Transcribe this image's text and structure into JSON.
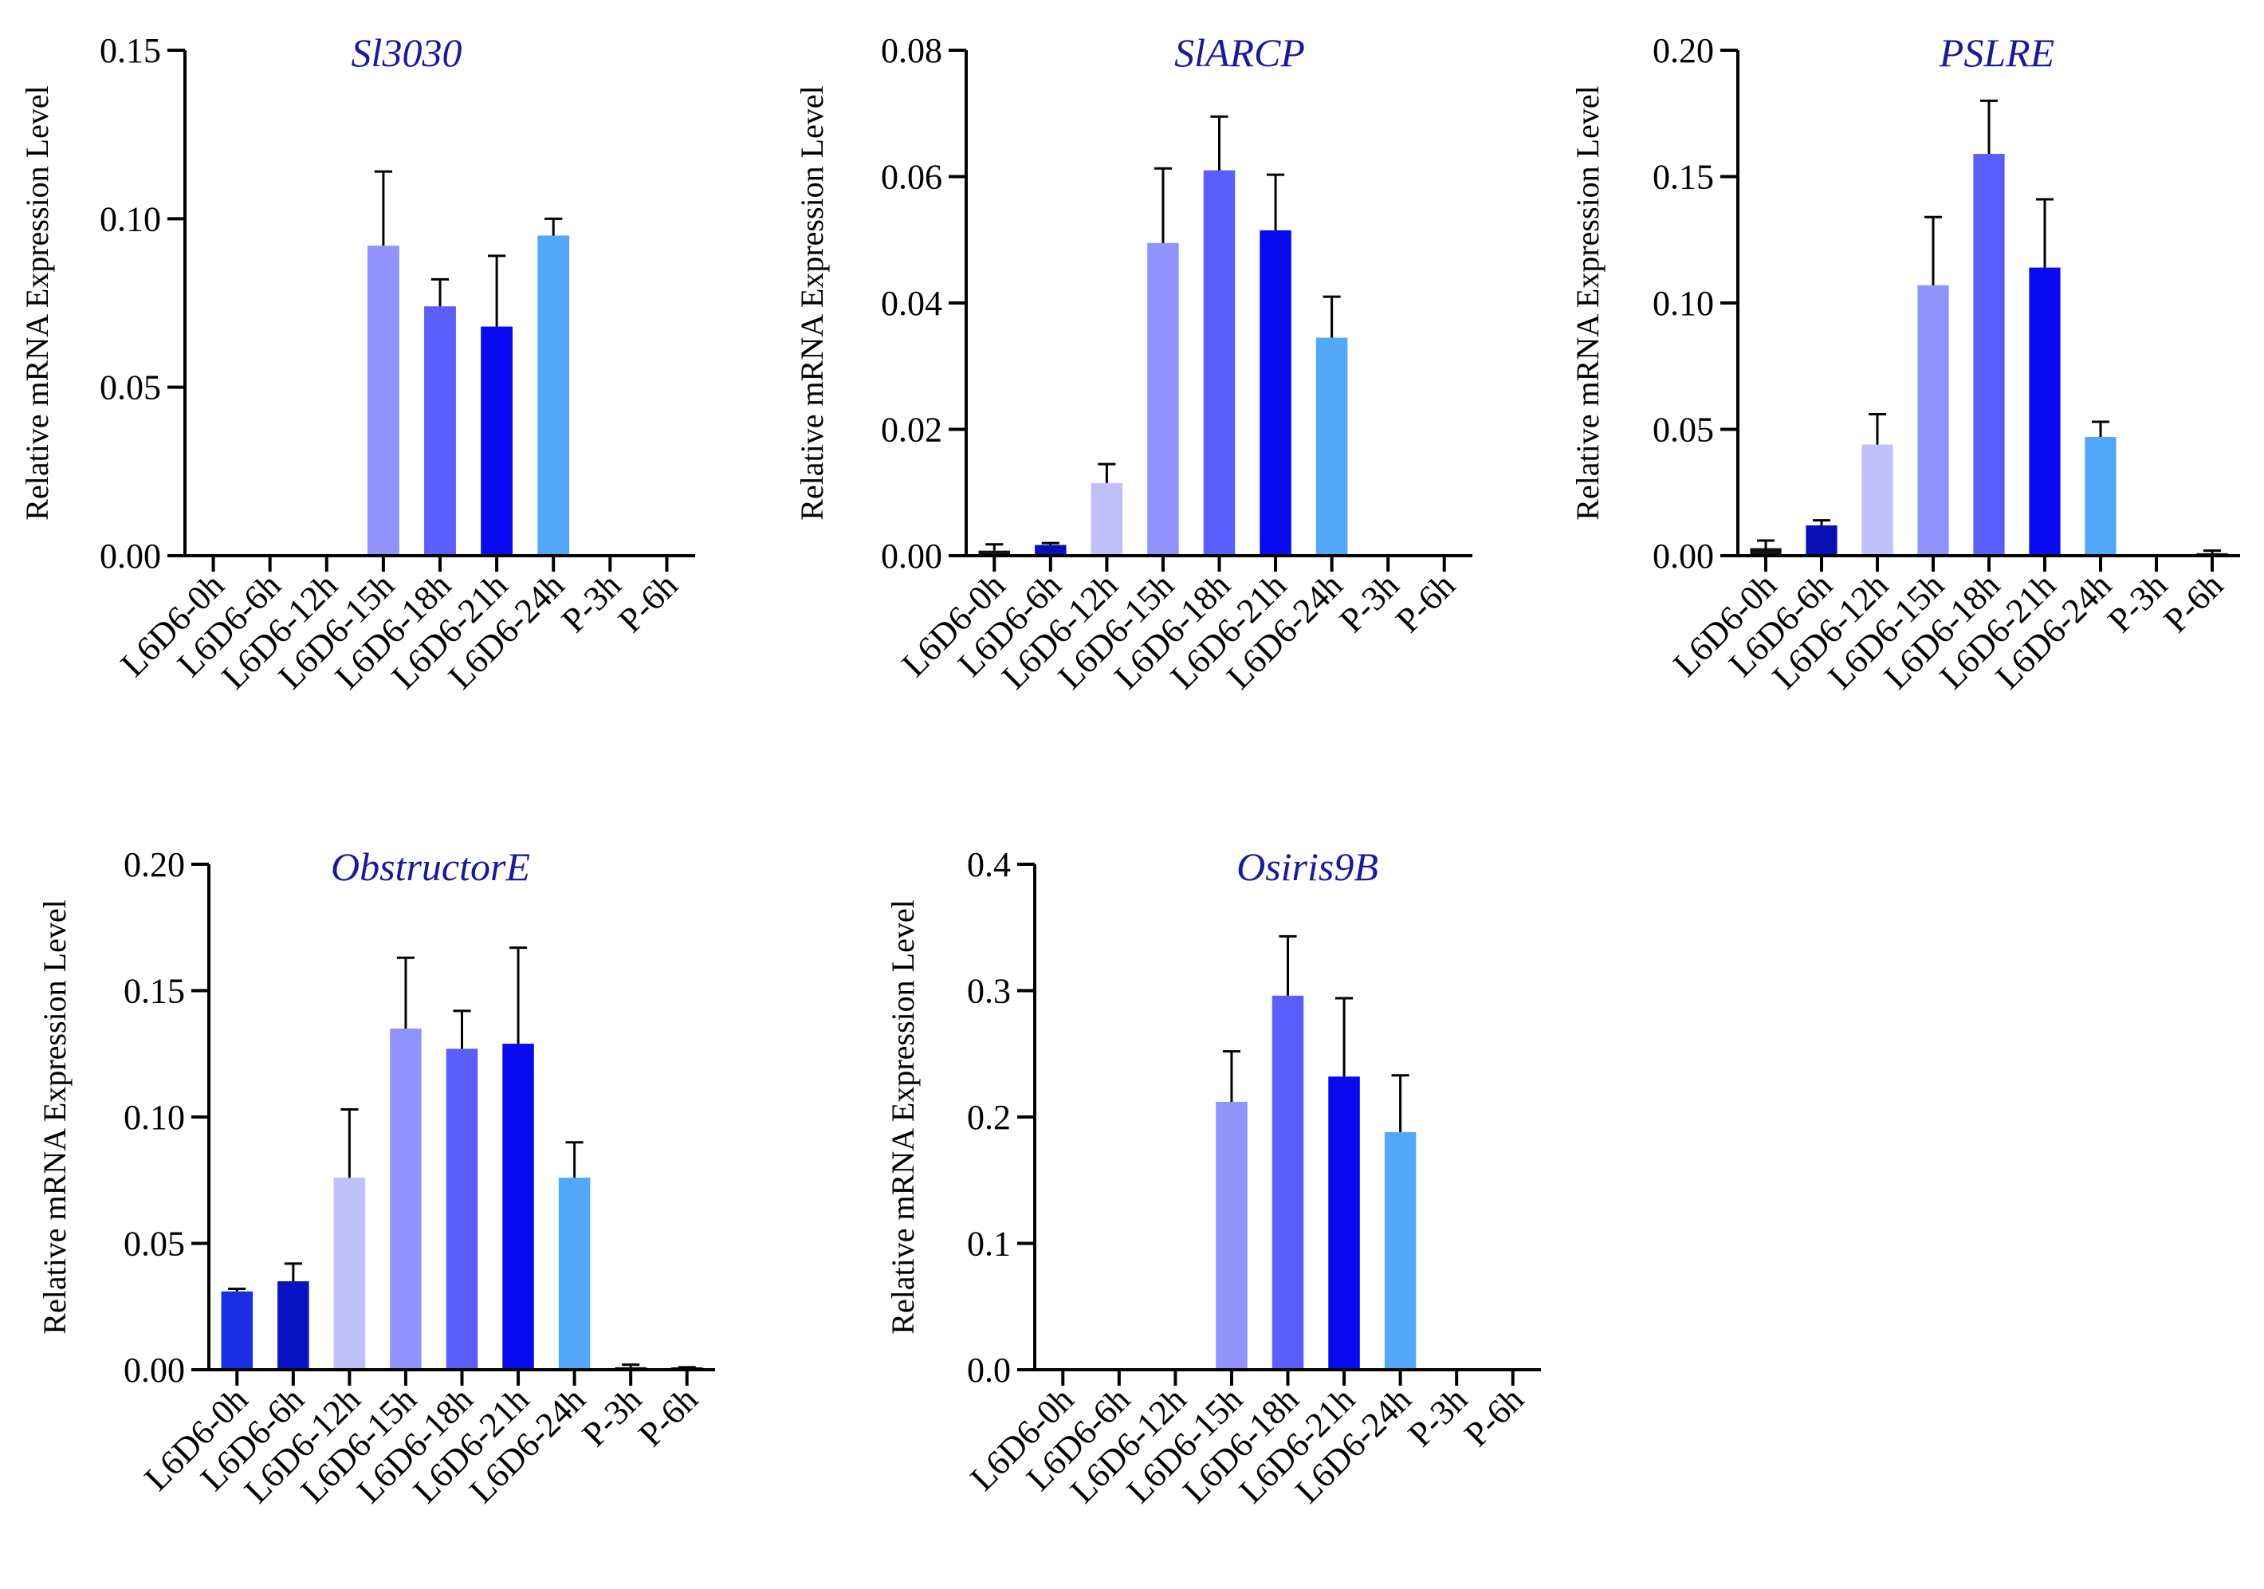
{
  "chart_data": [
    {
      "type": "bar",
      "title": "Sl3030",
      "ylabel": "Relative mRNA Expression Level",
      "xlabel": "",
      "ylim": [
        0,
        0.15
      ],
      "yticks": [
        "0.00",
        "0.05",
        "0.10",
        "0.15"
      ],
      "grid": false,
      "categories": [
        "L6D6-0h",
        "L6D6-6h",
        "L6D6-12h",
        "L6D6-15h",
        "L6D6-18h",
        "L6D6-21h",
        "L6D6-24h",
        "P-3h",
        "P-6h"
      ],
      "values": [
        0,
        0,
        0,
        0.092,
        0.074,
        0.068,
        0.095,
        0,
        0
      ],
      "errors": [
        0,
        0,
        0,
        0.022,
        0.008,
        0.021,
        0.005,
        0,
        0
      ]
    },
    {
      "type": "bar",
      "title": "SlARCP",
      "ylabel": "Relative mRNA Expression Level",
      "xlabel": "",
      "ylim": [
        0,
        0.08
      ],
      "yticks": [
        "0.00",
        "0.02",
        "0.04",
        "0.06",
        "0.08"
      ],
      "grid": false,
      "categories": [
        "L6D6-0h",
        "L6D6-6h",
        "L6D6-12h",
        "L6D6-15h",
        "L6D6-18h",
        "L6D6-21h",
        "L6D6-24h",
        "P-3h",
        "P-6h"
      ],
      "values": [
        0.0008,
        0.0017,
        0.0115,
        0.0495,
        0.061,
        0.0515,
        0.0345,
        0,
        0
      ],
      "errors": [
        0.001,
        0.0003,
        0.003,
        0.0118,
        0.0085,
        0.0088,
        0.0065,
        0,
        0
      ]
    },
    {
      "type": "bar",
      "title": "PSLRE",
      "ylabel": "Relative mRNA Expression Level",
      "xlabel": "",
      "ylim": [
        0,
        0.2
      ],
      "yticks": [
        "0.00",
        "0.05",
        "0.10",
        "0.15",
        "0.20"
      ],
      "grid": false,
      "categories": [
        "L6D6-0h",
        "L6D6-6h",
        "L6D6-12h",
        "L6D6-15h",
        "L6D6-18h",
        "L6D6-21h",
        "L6D6-24h",
        "P-3h",
        "P-6h"
      ],
      "values": [
        0.003,
        0.012,
        0.044,
        0.107,
        0.159,
        0.114,
        0.047,
        0,
        0.001
      ],
      "errors": [
        0.003,
        0.002,
        0.012,
        0.027,
        0.021,
        0.027,
        0.006,
        0,
        0.001
      ]
    },
    {
      "type": "bar",
      "title": "ObstructorE",
      "ylabel": "Relative mRNA Expression Level",
      "xlabel": "",
      "ylim": [
        0,
        0.2
      ],
      "yticks": [
        "0.00",
        "0.05",
        "0.10",
        "0.15",
        "0.20"
      ],
      "grid": false,
      "categories": [
        "L6D6-0h",
        "L6D6-6h",
        "L6D6-12h",
        "L6D6-15h",
        "L6D6-18h",
        "L6D6-21h",
        "L6D6-24h",
        "P-3h",
        "P-6h"
      ],
      "values": [
        0.031,
        0.035,
        0.076,
        0.135,
        0.127,
        0.129,
        0.076,
        0.001,
        0.0005
      ],
      "errors": [
        0.001,
        0.007,
        0.027,
        0.028,
        0.015,
        0.038,
        0.014,
        0.001,
        0.0005
      ]
    },
    {
      "type": "bar",
      "title": "Osiris9B",
      "ylabel": "Relative mRNA Expression Level",
      "xlabel": "",
      "ylim": [
        0,
        0.4
      ],
      "yticks": [
        "0.0",
        "0.1",
        "0.2",
        "0.3",
        "0.4"
      ],
      "grid": false,
      "categories": [
        "L6D6-0h",
        "L6D6-6h",
        "L6D6-12h",
        "L6D6-15h",
        "L6D6-18h",
        "L6D6-21h",
        "L6D6-24h",
        "P-3h",
        "P-6h"
      ],
      "values": [
        0,
        0,
        0,
        0.212,
        0.296,
        0.232,
        0.188,
        0,
        0
      ],
      "errors": [
        0,
        0,
        0,
        0.04,
        0.047,
        0.062,
        0.045,
        0,
        0
      ]
    }
  ],
  "bar_colors": [
    "#111111",
    "#0a0fb4",
    "#bfc1fb",
    "#8f93fb",
    "#5a5efb",
    "#0a0af0",
    "#52a7fb",
    "#111111",
    "#111111"
  ],
  "panel_bar_colors": {
    "3": [
      "#1b2fe2",
      "#0b14c4",
      "#bfc1fb",
      "#8f93fb",
      "#5a5efb",
      "#0a0af0",
      "#52a7fb",
      "#111111",
      "#111111"
    ]
  }
}
